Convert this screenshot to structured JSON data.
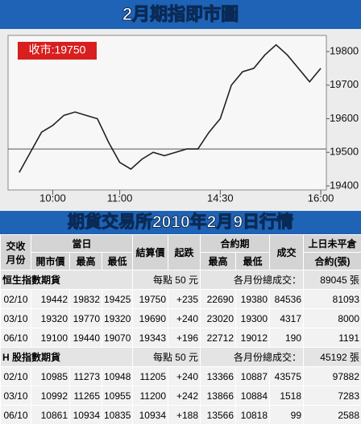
{
  "chart_data": {
    "type": "line",
    "title": "2月期指即市圖",
    "annotation": "收市:19750",
    "x": [
      "09:30",
      "09:40",
      "09:50",
      "10:00",
      "10:10",
      "10:20",
      "10:30",
      "10:40",
      "10:50",
      "11:00",
      "11:10",
      "11:20",
      "11:30",
      "11:40",
      "11:50",
      "12:00",
      "12:10",
      "12:20",
      "14:30",
      "14:40",
      "14:50",
      "15:00",
      "15:10",
      "15:20",
      "15:30",
      "15:40",
      "15:50",
      "16:00"
    ],
    "values": [
      19440,
      19500,
      19560,
      19580,
      19610,
      19620,
      19610,
      19600,
      19530,
      19470,
      19450,
      19480,
      19500,
      19490,
      19500,
      19510,
      19510,
      19560,
      19600,
      19700,
      19740,
      19750,
      19790,
      19820,
      19790,
      19750,
      19710,
      19750
    ],
    "color": "#222222",
    "reference_line": 19510,
    "xlim": [
      "09:20",
      "16:05"
    ],
    "xticks": [
      "10:00",
      "11:00",
      "14:30",
      "16:00"
    ],
    "ylim": [
      19388,
      19848
    ],
    "yticks": [
      19400,
      19500,
      19600,
      19700,
      19800
    ]
  },
  "table": {
    "title": "期貨交易所2010年2月9日行情",
    "header_top": [
      "交收",
      "當日",
      "結算價",
      "起跌",
      "合約期",
      "成交",
      "上日未平倉"
    ],
    "header_bottom": [
      "月份",
      "開市價",
      "最高",
      "最低",
      "最高",
      "最低",
      "合約(張)"
    ],
    "sections": [
      {
        "name": "恒生指數期貨",
        "unit": "每點 50 元",
        "total_label": "各月份總成交：",
        "total": "89045 張",
        "rows": [
          [
            "02/10",
            "19442",
            "19832",
            "19425",
            "19750",
            "+235",
            "22690",
            "19380",
            "84536",
            "81093"
          ],
          [
            "03/10",
            "19320",
            "19770",
            "19320",
            "19690",
            "+240",
            "23020",
            "19300",
            "4317",
            "8000"
          ],
          [
            "06/10",
            "19100",
            "19440",
            "19070",
            "19343",
            "+196",
            "22712",
            "19012",
            "190",
            "1191"
          ]
        ]
      },
      {
        "name": "H 股指數期貨",
        "unit": "每點 50 元",
        "total_label": "各月份總成交：",
        "total": "45192 張",
        "rows": [
          [
            "02/10",
            "10985",
            "11273",
            "10948",
            "11205",
            "+240",
            "13366",
            "10887",
            "43575",
            "97882"
          ],
          [
            "03/10",
            "10992",
            "11265",
            "10955",
            "11200",
            "+242",
            "13866",
            "10884",
            "1518",
            "7283"
          ],
          [
            "06/10",
            "10861",
            "10934",
            "10835",
            "10934",
            "+188",
            "13566",
            "10818",
            "99",
            "2588"
          ]
        ]
      }
    ]
  }
}
